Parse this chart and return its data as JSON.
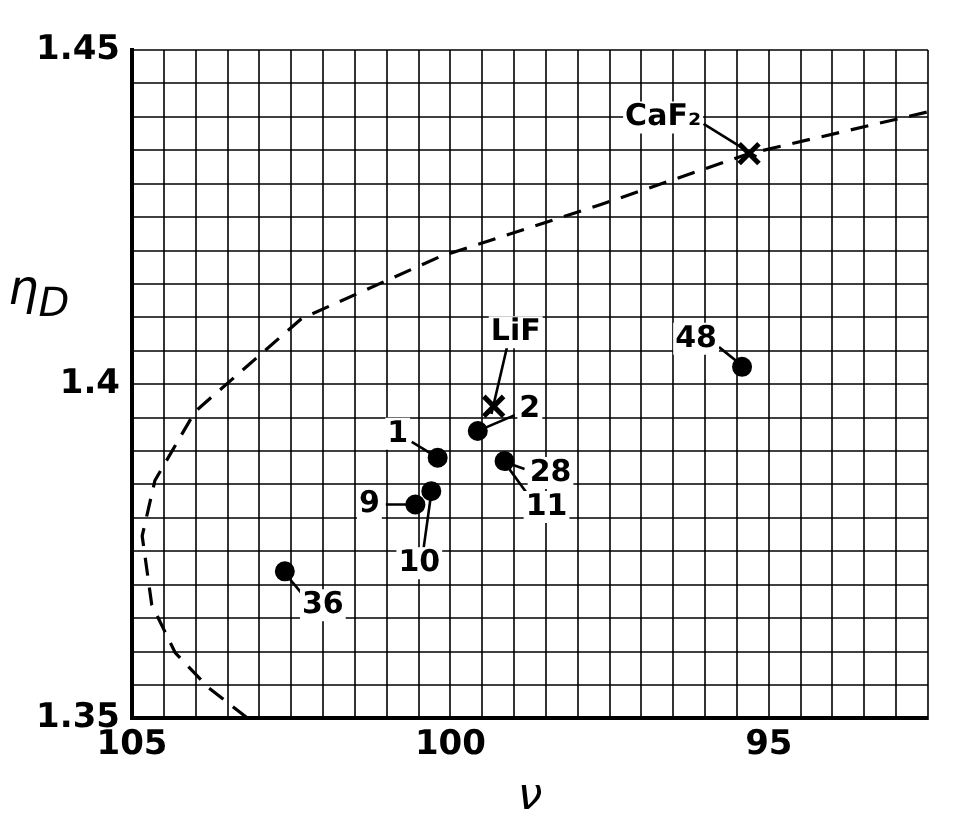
{
  "chart_data": {
    "type": "scatter",
    "xlabel": "ν",
    "ylabel": "η$_{D}$",
    "xlim": [
      105,
      92.5
    ],
    "xticks": [
      105,
      {
        "value": 104.5,
        "label": null
      },
      {
        "value": 104,
        "label": null
      },
      {
        "value": 103.5,
        "label": null
      },
      {
        "value": 103,
        "label": null
      },
      {
        "value": 102.5,
        "label": null
      },
      {
        "value": 102,
        "label": null
      },
      {
        "value": 101.5,
        "label": null
      },
      {
        "value": 101,
        "label": null
      },
      {
        "value": 100.5,
        "label": null
      },
      100,
      {
        "value": 99.5,
        "label": null
      },
      {
        "value": 99,
        "label": null
      },
      {
        "value": 98.5,
        "label": null
      },
      {
        "value": 98,
        "label": null
      },
      {
        "value": 97.5,
        "label": null
      },
      {
        "value": 97,
        "label": null
      },
      {
        "value": 96.5,
        "label": null
      },
      {
        "value": 96,
        "label": null
      },
      {
        "value": 95.5,
        "label": null
      },
      95,
      {
        "value": 94.5,
        "label": null
      },
      {
        "value": 94,
        "label": null
      },
      {
        "value": 93.5,
        "label": null
      },
      {
        "value": 93,
        "label": null
      },
      {
        "value": 92.5,
        "label": null
      }
    ],
    "ylim": [
      1.35,
      1.45
    ],
    "yticks": [
      1.35,
      {
        "value": 1.355,
        "label": null
      },
      {
        "value": 1.36,
        "label": null
      },
      {
        "value": 1.365,
        "label": null
      },
      {
        "value": 1.37,
        "label": null
      },
      {
        "value": 1.375,
        "label": null
      },
      {
        "value": 1.38,
        "label": null
      },
      {
        "value": 1.385,
        "label": null
      },
      {
        "value": 1.39,
        "label": null
      },
      {
        "value": 1.395,
        "label": null
      },
      1.4,
      {
        "value": 1.405,
        "label": null
      },
      {
        "value": 1.41,
        "label": null
      },
      {
        "value": 1.415,
        "label": null
      },
      {
        "value": 1.42,
        "label": null
      },
      {
        "value": 1.425,
        "label": null
      },
      {
        "value": 1.43,
        "label": null
      },
      {
        "value": 1.435,
        "label": null
      },
      {
        "value": 1.44,
        "label": null
      },
      {
        "value": 1.445,
        "label": null
      },
      1.45
    ],
    "grid": true,
    "legend": false,
    "series": [
      {
        "type": "scatter",
        "marker": "circle",
        "color": "#000000",
        "x": [
          102.6,
          100.55,
          100.3,
          100.2,
          99.57,
          99.15,
          95.42
        ],
        "values": [
          1.372,
          1.382,
          1.384,
          1.389,
          1.393,
          1.3885,
          1.4026
        ]
      },
      {
        "type": "scatter",
        "marker": "cross",
        "color": "#000000",
        "x": [
          99.32,
          95.31
        ],
        "values": [
          1.3967,
          1.4345
        ]
      },
      {
        "type": "line",
        "marker": "none",
        "line_style": "dashed",
        "color": "#000000",
        "x": [
          92.52,
          95.31,
          97.66,
          100.16,
          102.34,
          104.01,
          104.64,
          104.84,
          104.69,
          104.32,
          103.8,
          103.18
        ],
        "values": [
          1.4407,
          1.4345,
          1.4268,
          1.4191,
          1.4098,
          1.3959,
          1.3856,
          1.3773,
          1.367,
          1.3598,
          1.3546,
          1.35
        ]
      }
    ],
    "annotations": [
      {
        "text": "1",
        "x": 100.2,
        "y": 1.389
      },
      {
        "text": "2",
        "x": 99.57,
        "y": 1.393
      },
      {
        "text": "9",
        "x": 100.55,
        "y": 1.382
      },
      {
        "text": "10",
        "x": 100.3,
        "y": 1.384
      },
      {
        "text": "11",
        "x": 99.15,
        "y": 1.3885
      },
      {
        "text": "28",
        "x": 99.15,
        "y": 1.3885
      },
      {
        "text": "36",
        "x": 102.6,
        "y": 1.372
      },
      {
        "text": "48",
        "x": 95.42,
        "y": 1.4026
      },
      {
        "text": "LiF",
        "x": 99.32,
        "y": 1.3967
      },
      {
        "text": "CaF₂",
        "x": 95.31,
        "y": 1.4345
      }
    ]
  }
}
